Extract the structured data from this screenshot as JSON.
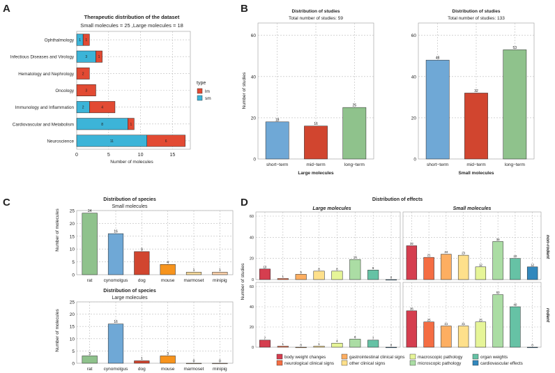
{
  "colors": {
    "lm": "#e24a33",
    "sm": "#3cb4d8",
    "short_term": "#6fa8d6",
    "mid_term": "#d1452f",
    "long_term": "#8fc28c",
    "species": [
      "#8fc28c",
      "#6fa8d6",
      "#d1452f",
      "#f7941d",
      "#f3d79a",
      "#f8cfa8"
    ],
    "effects": [
      "#d53e4f",
      "#f46d43",
      "#fdae61",
      "#fee08b",
      "#e6f598",
      "#abdda4",
      "#66c2a5",
      "#3288bd"
    ]
  },
  "panels": {
    "A": {
      "label": "A"
    },
    "B": {
      "label": "B"
    },
    "C": {
      "label": "C"
    },
    "D": {
      "label": "D"
    }
  },
  "chart_data": [
    {
      "id": "A",
      "type": "bar",
      "orientation": "horizontal",
      "stacked": true,
      "title": "Therapeutic distribution of the dataset",
      "subtitle": "Small molecules = 25 ,Large molecules = 18",
      "xlabel": "Number of molecules",
      "ylabel": "",
      "xlim": [
        0,
        17.8
      ],
      "xticks": [
        0,
        5,
        10,
        15
      ],
      "categories": [
        "Ophthalmology",
        "Infectious Diseases and Virology",
        "Hematology and Nephrology",
        "Oncology",
        "Immunology and Inflammation",
        "Cardiovascular and Metabolism",
        "Neuroscience"
      ],
      "series": [
        {
          "name": "sm",
          "values": [
            1,
            3,
            0,
            0,
            2,
            8,
            11
          ]
        },
        {
          "name": "lm",
          "values": [
            1,
            1,
            2,
            3,
            4,
            1,
            6
          ]
        }
      ],
      "legend": {
        "title": "type",
        "entries": [
          "lm",
          "sm"
        ],
        "position": "right"
      }
    },
    {
      "id": "B1",
      "type": "bar",
      "title": "Distribution of studies",
      "subtitle": "Total number of studies: 59",
      "xlabel": "Large molecules",
      "ylabel": "Number of studies",
      "ylim": [
        0,
        66
      ],
      "yticks": [
        0,
        20,
        40,
        60
      ],
      "categories": [
        "short−term",
        "mid−term",
        "long−term"
      ],
      "values": [
        18,
        16,
        25
      ]
    },
    {
      "id": "B2",
      "type": "bar",
      "title": "Distribution of studies",
      "subtitle": "Total number of studies: 133",
      "xlabel": "Small molecules",
      "ylabel": "",
      "ylim": [
        0,
        66
      ],
      "yticks": [
        0,
        20,
        40,
        60
      ],
      "categories": [
        "short−term",
        "mid−term",
        "long−term"
      ],
      "values": [
        48,
        32,
        53
      ]
    },
    {
      "id": "C1",
      "type": "bar",
      "title": "Distribution of species",
      "subtitle": "Small molecules",
      "xlabel": "",
      "ylabel": "Number of molecules",
      "ylim": [
        0,
        25
      ],
      "yticks": [
        0,
        5,
        10,
        15,
        20,
        25
      ],
      "categories": [
        "rat",
        "cynomolgus",
        "dog",
        "mouse",
        "marmoset",
        "minipig"
      ],
      "values": [
        24,
        16,
        9,
        4,
        1,
        1
      ]
    },
    {
      "id": "C2",
      "type": "bar",
      "title": "Distribution of species",
      "subtitle": "Large molecules",
      "xlabel": "",
      "ylabel": "Number of molecules",
      "ylim": [
        0,
        25
      ],
      "yticks": [
        0,
        5,
        10,
        15,
        20,
        25
      ],
      "categories": [
        "rat",
        "cynomolgus",
        "dog",
        "mouse",
        "marmoset",
        "minipig"
      ],
      "values": [
        3,
        16,
        1,
        3,
        0,
        0
      ]
    },
    {
      "id": "D",
      "type": "bar",
      "faceted": true,
      "title": "Distribution of effects",
      "ylabel": "Number of studies",
      "ylim": [
        0,
        60
      ],
      "yticks": [
        0,
        20,
        40,
        60
      ],
      "columns": [
        "Large molecules",
        "Small molecules"
      ],
      "rows": [
        "non-rodent",
        "rodent"
      ],
      "categories": [
        "body weight changes",
        "neurological clinical signs",
        "gastrointestinal clinical signs",
        "other clinical signs",
        "macroscopic pathology",
        "microscopic pathology",
        "organ weights",
        "cardiovascular effects"
      ],
      "panels": [
        {
          "column": "Large molecules",
          "row": "non-rodent",
          "values": [
            10,
            1,
            5,
            8,
            8,
            19,
            9,
            0
          ]
        },
        {
          "column": "Small molecules",
          "row": "non-rodent",
          "values": [
            32,
            21,
            24,
            23,
            12,
            36,
            20,
            12
          ]
        },
        {
          "column": "Large molecules",
          "row": "rodent",
          "values": [
            7,
            1,
            0,
            1,
            4,
            8,
            7,
            0
          ]
        },
        {
          "column": "Small molecules",
          "row": "rodent",
          "values": [
            36,
            25,
            21,
            21,
            25,
            52,
            40,
            0
          ]
        }
      ],
      "legend": {
        "entries": [
          "body weight changes",
          "neurological clinical signs",
          "gastrointestinal clinical signs",
          "other clinical signs",
          "macroscopic pathology",
          "microscopic pathology",
          "organ weights",
          "cardiovascular effects"
        ],
        "position": "bottom"
      }
    }
  ]
}
